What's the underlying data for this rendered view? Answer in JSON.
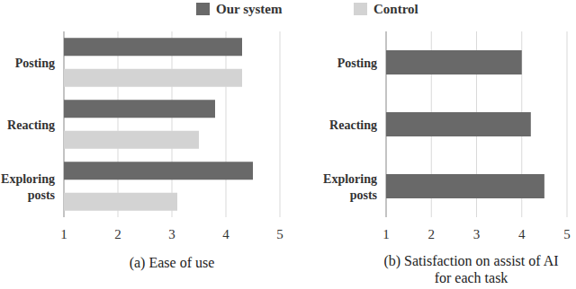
{
  "chart_data": [
    {
      "type": "bar",
      "orientation": "horizontal",
      "title": "(a) Ease of use",
      "categories": [
        "Posting",
        "Reacting",
        "Exploring posts"
      ],
      "series": [
        {
          "name": "Our system",
          "color": "#696969",
          "values": [
            4.3,
            3.8,
            4.5
          ]
        },
        {
          "name": "Control",
          "color": "#d3d3d3",
          "values": [
            4.3,
            3.5,
            3.1
          ]
        }
      ],
      "xlim": [
        1,
        5
      ],
      "xticks": [
        1,
        2,
        3,
        4,
        5
      ],
      "grid": true,
      "legend": "top"
    },
    {
      "type": "bar",
      "orientation": "horizontal",
      "title": "(b) Satisfaction on assist of AI for each task",
      "categories": [
        "Posting",
        "Reacting",
        "Exploring posts"
      ],
      "values": [
        4.0,
        4.2,
        4.5
      ],
      "color": "#696969",
      "xlim": [
        1,
        5
      ],
      "xticks": [
        1,
        2,
        3,
        4,
        5
      ],
      "grid": true
    }
  ]
}
